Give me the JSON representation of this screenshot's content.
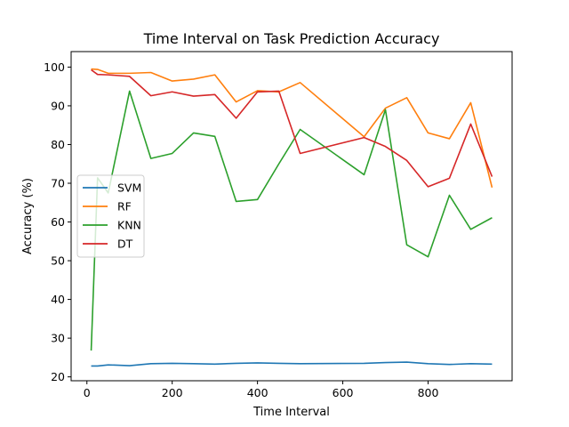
{
  "chart_data": {
    "type": "line",
    "title": "Time Interval on Task Prediction Accuracy",
    "xlabel": "Time Interval",
    "ylabel": "Accuracy (%)",
    "xlim": [
      -37,
      997
    ],
    "ylim": [
      19,
      104
    ],
    "xticks": [
      0,
      200,
      400,
      600,
      800
    ],
    "yticks": [
      20,
      30,
      40,
      50,
      60,
      70,
      80,
      90,
      100
    ],
    "grid": false,
    "legend_position": "center-left",
    "x": [
      10,
      25,
      50,
      100,
      150,
      200,
      250,
      300,
      350,
      400,
      450,
      500,
      650,
      700,
      750,
      800,
      850,
      900,
      950
    ],
    "series": [
      {
        "name": "SVM",
        "color": "#1f77b4",
        "values": [
          22.8,
          22.8,
          23.1,
          22.9,
          23.4,
          23.5,
          23.4,
          23.3,
          23.5,
          23.6,
          23.5,
          23.4,
          23.5,
          23.7,
          23.8,
          23.4,
          23.2,
          23.4,
          23.3
        ]
      },
      {
        "name": "RF",
        "color": "#ff7f0e",
        "values": [
          99.5,
          99.4,
          98.4,
          98.4,
          98.6,
          96.4,
          96.9,
          98.0,
          91.0,
          93.9,
          93.6,
          96.0,
          82.0,
          89.4,
          92.1,
          83.0,
          81.5,
          90.8,
          68.9
        ]
      },
      {
        "name": "KNN",
        "color": "#2ca02c",
        "values": [
          26.8,
          71.4,
          67.5,
          93.8,
          76.4,
          77.7,
          83.0,
          82.1,
          65.3,
          65.8,
          75.0,
          83.9,
          72.2,
          89.0,
          54.1,
          51.0,
          66.9,
          58.1,
          61.1
        ]
      },
      {
        "name": "DT",
        "color": "#d62728",
        "values": [
          99.3,
          98.1,
          98.0,
          97.6,
          92.6,
          93.6,
          92.5,
          92.9,
          86.8,
          93.6,
          93.8,
          77.7,
          81.8,
          79.5,
          75.9,
          69.1,
          71.3,
          85.3,
          71.7
        ]
      }
    ]
  }
}
